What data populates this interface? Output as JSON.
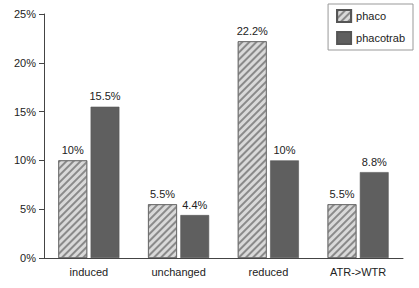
{
  "chart_data": {
    "type": "bar",
    "categories": [
      "induced",
      "unchanged",
      "reduced",
      "ATR->WTR"
    ],
    "series": [
      {
        "name": "phaco",
        "color": "#d9d9d9",
        "values": [
          10,
          5.5,
          22.2,
          5.5
        ],
        "value_labels": [
          "10%",
          "5.5%",
          "22.2%",
          "5.5%"
        ]
      },
      {
        "name": "phacotrab",
        "color": "#5f5f5f",
        "values": [
          15.5,
          4.4,
          10,
          8.8
        ],
        "value_labels": [
          "15.5%",
          "4.4%",
          "10%",
          "8.8%"
        ]
      }
    ],
    "ylim": [
      0,
      25
    ],
    "yticks": [
      {
        "value": 0,
        "label": "0%"
      },
      {
        "value": 5,
        "label": "5%"
      },
      {
        "value": 10,
        "label": "10%"
      },
      {
        "value": 15,
        "label": "15%"
      },
      {
        "value": 20,
        "label": "20%"
      },
      {
        "value": 25,
        "label": "25%"
      }
    ],
    "grid": false,
    "legend": "top-right",
    "data_labels": true
  }
}
